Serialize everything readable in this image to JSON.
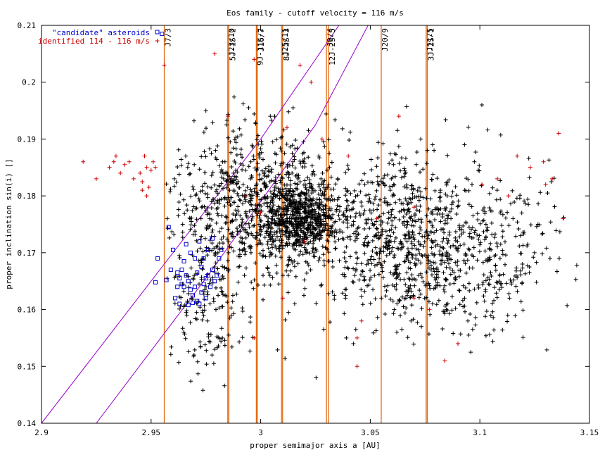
{
  "chart_data": {
    "type": "scatter",
    "title": "Eos family - cutoff velocity = 116 m/s",
    "xlabel": "proper semimajor axis a [AU]",
    "ylabel": "proper inclination sin(i) []",
    "xlim": [
      2.9,
      3.15
    ],
    "ylim": [
      0.14,
      0.21
    ],
    "x_ticks": [
      "2.9",
      "2.95",
      "3",
      "3.05",
      "3.1",
      "3.15"
    ],
    "y_ticks": [
      "0.14",
      "0.15",
      "0.16",
      "0.17",
      "0.18",
      "0.19",
      "0.2",
      "0.21"
    ],
    "grid": false,
    "legend_position": "top-left",
    "colors": {
      "family": "#000000",
      "candidate": "#0000cc",
      "identified": "#cc0000",
      "resonance": "#e06000",
      "secular": "#9900cc"
    },
    "series": [
      {
        "name": "\"candidate\" asteroids",
        "marker": "square",
        "color": "#0000cc",
        "points": [
          [
            2.955,
            0.2085
          ],
          [
            2.958,
            0.1745
          ],
          [
            2.96,
            0.1705
          ],
          [
            2.962,
            0.1665
          ],
          [
            2.963,
            0.1655
          ],
          [
            2.964,
            0.1645
          ],
          [
            2.965,
            0.164
          ],
          [
            2.966,
            0.166
          ],
          [
            2.967,
            0.165
          ],
          [
            2.968,
            0.1635
          ],
          [
            2.969,
            0.1625
          ],
          [
            2.97,
            0.164
          ],
          [
            2.971,
            0.1615
          ],
          [
            2.972,
            0.161
          ],
          [
            2.973,
            0.163
          ],
          [
            2.974,
            0.1645
          ],
          [
            2.975,
            0.1655
          ],
          [
            2.976,
            0.166
          ],
          [
            2.977,
            0.164
          ],
          [
            2.978,
            0.167
          ],
          [
            2.979,
            0.165
          ],
          [
            2.98,
            0.166
          ],
          [
            2.97,
            0.169
          ],
          [
            2.968,
            0.17
          ],
          [
            2.972,
            0.172
          ],
          [
            2.976,
            0.1705
          ],
          [
            2.966,
            0.1715
          ],
          [
            2.964,
            0.167
          ],
          [
            2.961,
            0.162
          ],
          [
            2.963,
            0.161
          ],
          [
            2.967,
            0.1608
          ],
          [
            2.969,
            0.1612
          ],
          [
            2.952,
            0.1648
          ],
          [
            2.953,
            0.169
          ],
          [
            2.957,
            0.1652
          ],
          [
            2.974,
            0.169
          ],
          [
            2.978,
            0.1725
          ],
          [
            2.982,
            0.1705
          ],
          [
            2.973,
            0.1675
          ],
          [
            2.971,
            0.1665
          ],
          [
            2.965,
            0.1685
          ],
          [
            2.975,
            0.162
          ],
          [
            2.959,
            0.167
          ],
          [
            2.962,
            0.164
          ],
          [
            2.981,
            0.169
          ]
        ]
      },
      {
        "name": "identified 114 - 116 m/s",
        "marker": "plus",
        "color": "#cc0000",
        "points": [
          [
            2.919,
            0.186
          ],
          [
            2.925,
            0.183
          ],
          [
            2.931,
            0.185
          ],
          [
            2.933,
            0.186
          ],
          [
            2.934,
            0.187
          ],
          [
            2.936,
            0.184
          ],
          [
            2.938,
            0.1855
          ],
          [
            2.94,
            0.186
          ],
          [
            2.942,
            0.183
          ],
          [
            2.945,
            0.184
          ],
          [
            2.946,
            0.1825
          ],
          [
            2.947,
            0.187
          ],
          [
            2.948,
            0.185
          ],
          [
            2.95,
            0.1845
          ],
          [
            2.951,
            0.186
          ],
          [
            2.952,
            0.185
          ],
          [
            2.946,
            0.181
          ],
          [
            2.949,
            0.1815
          ],
          [
            2.948,
            0.18
          ],
          [
            2.956,
            0.203
          ],
          [
            2.979,
            0.205
          ],
          [
            2.997,
            0.204
          ],
          [
            3.018,
            0.203
          ],
          [
            3.023,
            0.2
          ],
          [
            2.985,
            0.194
          ],
          [
            2.993,
            0.18
          ],
          [
            3.0,
            0.177
          ],
          [
            3.012,
            0.192
          ],
          [
            3.02,
            0.172
          ],
          [
            3.028,
            0.19
          ],
          [
            3.04,
            0.187
          ],
          [
            3.044,
            0.155
          ],
          [
            3.046,
            0.158
          ],
          [
            3.053,
            0.176
          ],
          [
            3.063,
            0.194
          ],
          [
            3.07,
            0.178
          ],
          [
            3.077,
            0.16
          ],
          [
            3.084,
            0.151
          ],
          [
            3.09,
            0.154
          ],
          [
            3.101,
            0.182
          ],
          [
            3.108,
            0.183
          ],
          [
            3.117,
            0.187
          ],
          [
            3.123,
            0.185
          ],
          [
            3.129,
            0.186
          ],
          [
            3.133,
            0.183
          ],
          [
            3.136,
            0.191
          ],
          [
            3.138,
            0.176
          ],
          [
            3.13,
            0.182
          ],
          [
            3.113,
            0.18
          ],
          [
            3.044,
            0.15
          ],
          [
            3.07,
            0.162
          ],
          [
            2.997,
            0.155
          ],
          [
            3.01,
            0.162
          ]
        ]
      },
      {
        "name": "Eos family",
        "marker": "plus",
        "color": "#000000",
        "points": []
      }
    ],
    "resonances": [
      {
        "label": "J7/3",
        "a": 2.956
      },
      {
        "label": "J23/10",
        "a": 2.985
      },
      {
        "label": "5J-1S-2",
        "a": 2.9855
      },
      {
        "label": "9J-11S-2",
        "a": 2.998
      },
      {
        "label": "J16/7",
        "a": 2.9985
      },
      {
        "label": "J25/11",
        "a": 3.0095
      },
      {
        "label": "8J-3S-3",
        "a": 3.01
      },
      {
        "label": "J9/4",
        "a": 3.03
      },
      {
        "label": "12J-2S-5",
        "a": 3.031
      },
      {
        "label": "J20/9",
        "a": 3.055
      },
      {
        "label": "J11/5",
        "a": 3.0755
      },
      {
        "label": "3J-2S-1",
        "a": 3.076
      }
    ],
    "secular_curves": [
      {
        "points": [
          [
            2.9,
            0.14
          ],
          [
            2.95,
            0.165
          ],
          [
            3.0,
            0.19
          ],
          [
            3.05,
            0.218
          ]
        ]
      },
      {
        "points": [
          [
            2.925,
            0.14
          ],
          [
            2.975,
            0.1655
          ],
          [
            3.025,
            0.1925
          ],
          [
            3.06,
            0.218
          ]
        ]
      }
    ]
  }
}
